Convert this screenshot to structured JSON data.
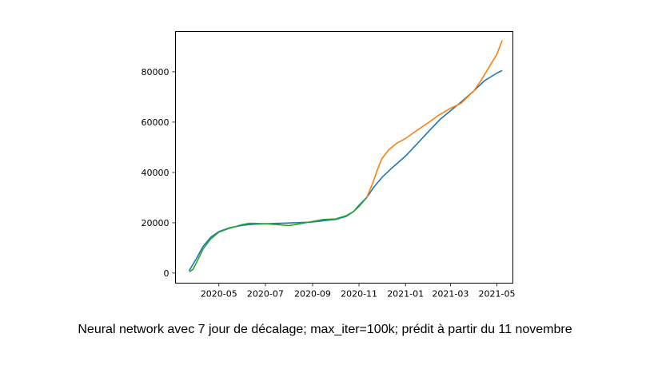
{
  "caption": "Neural network avec 7 jour de décalage; max_iter=100k; prédit à partir du 11 novembre",
  "chart_data": {
    "type": "line",
    "title": "",
    "xlabel": "",
    "ylabel": "",
    "xlim": [
      "2020-03-05",
      "2021-05-22"
    ],
    "ylim": [
      -4000,
      96000
    ],
    "grid": false,
    "x_ticks": [
      "2020-05",
      "2020-07",
      "2020-09",
      "2020-11",
      "2021-01",
      "2021-03",
      "2021-05"
    ],
    "x_tick_dates": [
      "2020-05-01",
      "2020-07-01",
      "2020-09-01",
      "2020-11-01",
      "2021-01-01",
      "2021-03-01",
      "2021-05-01"
    ],
    "y_ticks": [
      0,
      20000,
      40000,
      60000,
      80000
    ],
    "y_tick_labels": [
      "0",
      "20000",
      "40000",
      "60000",
      "80000"
    ],
    "colors": {
      "blue": "#1f77b4",
      "orange": "#ff7f0e",
      "green": "#2ca02c"
    },
    "series": [
      {
        "color": "#1f77b4",
        "points": [
          [
            "2020-03-23",
            1000
          ],
          [
            "2020-04-01",
            5500
          ],
          [
            "2020-04-10",
            10500
          ],
          [
            "2020-04-20",
            14200
          ],
          [
            "2020-05-01",
            16500
          ],
          [
            "2020-05-15",
            18000
          ],
          [
            "2020-06-01",
            19000
          ],
          [
            "2020-06-15",
            19400
          ],
          [
            "2020-07-01",
            19600
          ],
          [
            "2020-08-01",
            19900
          ],
          [
            "2020-09-01",
            20300
          ],
          [
            "2020-09-20",
            21000
          ],
          [
            "2020-10-01",
            21300
          ],
          [
            "2020-10-15",
            22500
          ],
          [
            "2020-10-25",
            24500
          ],
          [
            "2020-11-01",
            27000
          ],
          [
            "2020-11-11",
            30000
          ],
          [
            "2020-11-20",
            34000
          ],
          [
            "2020-12-01",
            38000
          ],
          [
            "2020-12-15",
            42000
          ],
          [
            "2021-01-01",
            46500
          ],
          [
            "2021-01-15",
            51000
          ],
          [
            "2021-02-01",
            56500
          ],
          [
            "2021-02-15",
            61000
          ],
          [
            "2021-03-01",
            64500
          ],
          [
            "2021-03-15",
            68000
          ],
          [
            "2021-04-01",
            72500
          ],
          [
            "2021-04-15",
            76500
          ],
          [
            "2021-05-01",
            79500
          ],
          [
            "2021-05-08",
            80500
          ]
        ]
      },
      {
        "color": "#ff7f0e",
        "points": [
          [
            "2020-11-11",
            30000
          ],
          [
            "2020-11-18",
            35000
          ],
          [
            "2020-11-25",
            41000
          ],
          [
            "2020-12-01",
            45500
          ],
          [
            "2020-12-10",
            49000
          ],
          [
            "2020-12-20",
            51500
          ],
          [
            "2021-01-01",
            53500
          ],
          [
            "2021-01-15",
            56500
          ],
          [
            "2021-02-01",
            60000
          ],
          [
            "2021-02-15",
            63000
          ],
          [
            "2021-03-01",
            65500
          ],
          [
            "2021-03-15",
            67500
          ],
          [
            "2021-04-01",
            72500
          ],
          [
            "2021-04-10",
            76500
          ],
          [
            "2021-04-20",
            81500
          ],
          [
            "2021-05-01",
            87000
          ],
          [
            "2021-05-08",
            92500
          ]
        ]
      },
      {
        "color": "#2ca02c",
        "points": [
          [
            "2020-03-23",
            500
          ],
          [
            "2020-03-28",
            1500
          ],
          [
            "2020-04-03",
            5000
          ],
          [
            "2020-04-10",
            9500
          ],
          [
            "2020-04-20",
            13500
          ],
          [
            "2020-05-01",
            16300
          ],
          [
            "2020-05-15",
            17800
          ],
          [
            "2020-06-01",
            19300
          ],
          [
            "2020-06-10",
            19800
          ],
          [
            "2020-06-20",
            19700
          ],
          [
            "2020-07-01",
            19600
          ],
          [
            "2020-07-15",
            19300
          ],
          [
            "2020-08-01",
            18900
          ],
          [
            "2020-08-15",
            19600
          ],
          [
            "2020-09-01",
            20500
          ],
          [
            "2020-09-15",
            21300
          ],
          [
            "2020-10-01",
            21500
          ],
          [
            "2020-10-15",
            22800
          ],
          [
            "2020-10-25",
            24500
          ],
          [
            "2020-11-01",
            26500
          ],
          [
            "2020-11-11",
            30000
          ]
        ]
      }
    ]
  }
}
